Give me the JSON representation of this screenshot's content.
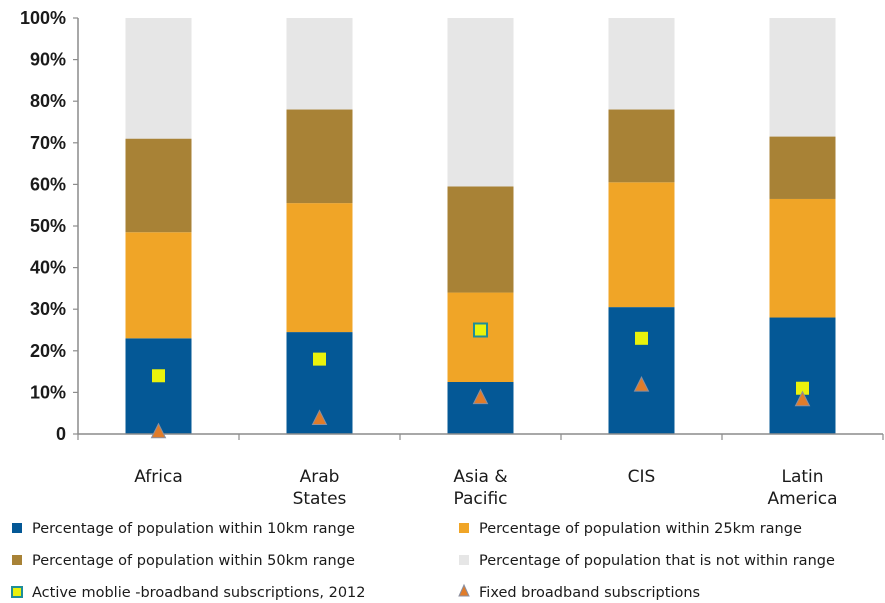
{
  "chart_data": {
    "type": "bar",
    "stacked": true,
    "categories": [
      [
        "Africa"
      ],
      [
        "Arab",
        "States"
      ],
      [
        "Asia &",
        "Pacific"
      ],
      [
        "CIS"
      ],
      [
        "Latin",
        "America"
      ]
    ],
    "ylim": [
      0,
      100
    ],
    "yticks": [
      "0",
      "10%",
      "20%",
      "30%",
      "40%",
      "50%",
      "60%",
      "70%",
      "80%",
      "90%",
      "100%"
    ],
    "series": [
      {
        "name": "Percentage of population within 10km range",
        "color": "#045896",
        "values": [
          23,
          24.5,
          12.5,
          30.5,
          28
        ]
      },
      {
        "name": "Percentage of population within 25km range",
        "color": "#f0a527",
        "values": [
          25.5,
          31,
          21.5,
          30,
          28.5
        ]
      },
      {
        "name": "Percentage of population within 50km range",
        "color": "#a88236",
        "values": [
          22.5,
          22.5,
          25.5,
          17.5,
          15
        ]
      },
      {
        "name": "Percentage of population that is not within  range",
        "color": "#e6e6e6",
        "values": [
          29,
          22,
          40.5,
          22,
          28.5
        ]
      }
    ],
    "markers": [
      {
        "name": "Active moblie -broadband subscriptions, 2012",
        "shape": "square",
        "color": "#eaf20c",
        "edge": "#1f8d99",
        "values": [
          14,
          18,
          25,
          23,
          11
        ]
      },
      {
        "name": "Fixed broadband subscriptions",
        "shape": "triangle",
        "color": "#e07c2a",
        "edge": "#8a8fa0",
        "values": [
          0.3,
          3.5,
          8.5,
          11.5,
          8
        ]
      }
    ],
    "legend_position": "bottom",
    "grid": false
  }
}
